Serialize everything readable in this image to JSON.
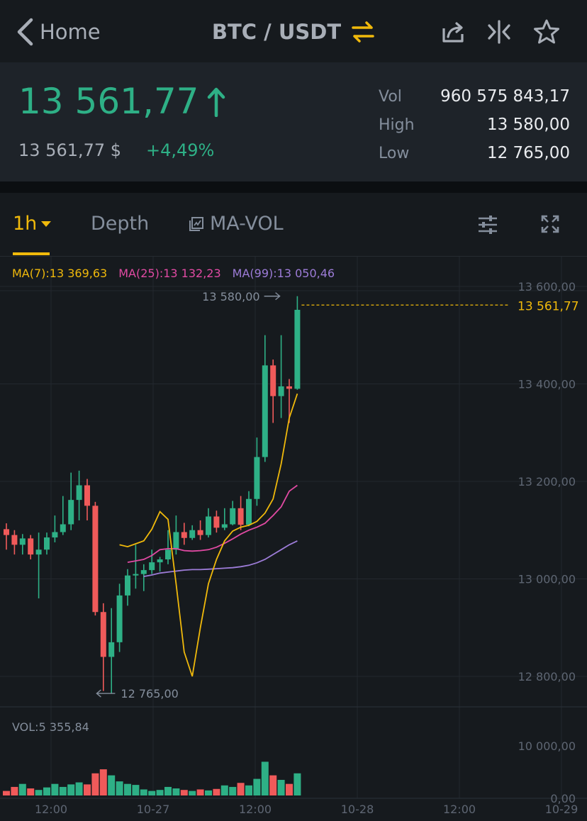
{
  "nav": {
    "back_label": "Home",
    "pair": "BTC / USDT",
    "icons": [
      "chevron-left-icon",
      "swap-icon",
      "share-icon",
      "compare-icon",
      "star-icon"
    ],
    "accent": "#f0b90b"
  },
  "ticker": {
    "last_price": "13 561,77",
    "fiat_price": "13 561,77 $",
    "change": "+4,49%",
    "up_color": "#2eb086",
    "stats": [
      {
        "label": "Vol",
        "value": "960 575 843,17"
      },
      {
        "label": "High",
        "value": "13 580,00"
      },
      {
        "label": "Low",
        "value": "12 765,00"
      }
    ]
  },
  "tabs": {
    "interval": "1h",
    "depth": "Depth",
    "indicator": "MA-VOL",
    "icons": [
      "chart-box-icon",
      "settings-sliders-icon",
      "fullscreen-icon"
    ]
  },
  "chart_data": {
    "type": "candlestick",
    "ma_legend": [
      {
        "label": "MA(7):13 369,63",
        "color": "#f0b90b"
      },
      {
        "label": "MA(25):13 132,23",
        "color": "#e14aa3"
      },
      {
        "label": "MA(99):13 050,46",
        "color": "#9d7cd8"
      }
    ],
    "price_ticks": [
      13600,
      13400,
      13200,
      13000,
      12800
    ],
    "price_tick_labels": [
      "13 600,00",
      "13 400,00",
      "13 200,00",
      "13 000,00",
      "12 800,00"
    ],
    "ylim": [
      12690,
      13620
    ],
    "current_price": 13561.77,
    "current_price_label": "13 561,77",
    "high_label": "13 580,00",
    "low_label": "12 765,00",
    "high_value": 13580,
    "low_value": 12765,
    "high_index": 34,
    "low_index": 11,
    "x_tick_labels": [
      "12:00",
      "10-27",
      "12:00",
      "10-28",
      "12:00",
      "10-29"
    ],
    "candles": [
      [
        13102,
        13090,
        13114,
        13060
      ],
      [
        13090,
        13070,
        13100,
        13050
      ],
      [
        13070,
        13083,
        13092,
        13050
      ],
      [
        13083,
        13050,
        13090,
        13040
      ],
      [
        13050,
        13060,
        13095,
        12960
      ],
      [
        13060,
        13085,
        13095,
        13050
      ],
      [
        13085,
        13096,
        13130,
        13075
      ],
      [
        13096,
        13112,
        13170,
        13090
      ],
      [
        13112,
        13162,
        13218,
        13100
      ],
      [
        13162,
        13192,
        13222,
        13120
      ],
      [
        13192,
        13150,
        13205,
        13120
      ],
      [
        13150,
        12932,
        13158,
        12925
      ],
      [
        12932,
        12840,
        12950,
        12770
      ],
      [
        12840,
        12870,
        12940,
        12765
      ],
      [
        12870,
        12966,
        12990,
        12850
      ],
      [
        12966,
        13007,
        13020,
        12945
      ],
      [
        13007,
        13010,
        13070,
        12980
      ],
      [
        13010,
        13018,
        13030,
        12975
      ],
      [
        13018,
        13034,
        13060,
        13010
      ],
      [
        13034,
        13040,
        13045,
        13015
      ],
      [
        13040,
        13060,
        13100,
        13030
      ],
      [
        13060,
        13096,
        13130,
        13050
      ],
      [
        13096,
        13084,
        13115,
        13070
      ],
      [
        13084,
        13100,
        13110,
        13080
      ],
      [
        13100,
        13090,
        13120,
        13080
      ],
      [
        13090,
        13128,
        13145,
        13085
      ],
      [
        13128,
        13105,
        13140,
        13095
      ],
      [
        13105,
        13112,
        13145,
        13100
      ],
      [
        13112,
        13145,
        13160,
        13110
      ],
      [
        13145,
        13111,
        13170,
        13100
      ],
      [
        13111,
        13164,
        13180,
        13108
      ],
      [
        13164,
        13250,
        13290,
        13150
      ],
      [
        13250,
        13438,
        13500,
        13240
      ],
      [
        13438,
        13375,
        13450,
        13320
      ],
      [
        13375,
        13395,
        13500,
        13330
      ],
      [
        13395,
        13390,
        13410,
        13320
      ],
      [
        13390,
        13552,
        13580,
        13388
      ]
    ],
    "ma7": [
      13070,
      13066,
      13072,
      13078,
      13102,
      13138,
      13122,
      12990,
      12850,
      12800,
      12900,
      12990,
      13040,
      13078,
      13098,
      13106,
      13110,
      13118,
      13135,
      13164,
      13236,
      13330,
      13380
    ],
    "ma25": [
      13034,
      13037,
      13040,
      13048,
      13060,
      13062,
      13062,
      13058,
      13057,
      13058,
      13060,
      13065,
      13073,
      13082,
      13092,
      13100,
      13106,
      13114,
      13130,
      13148,
      13180,
      13192
    ],
    "ma99": [
      13005,
      13008,
      13012,
      13014,
      13016,
      13018,
      13019,
      13019,
      13020,
      13021,
      13022,
      13023,
      13025,
      13028,
      13033,
      13040,
      13050,
      13060,
      13070,
      13078
    ],
    "volume_legend": "VOL:5 355,84",
    "volume_ticks": [
      "10 000,00",
      "0,00"
    ],
    "volume_ylim": [
      0,
      10000
    ],
    "volumes": [
      900,
      1700,
      2300,
      1400,
      1100,
      1600,
      2300,
      1700,
      2200,
      2600,
      2200,
      4400,
      5200,
      4000,
      2800,
      2300,
      2100,
      1200,
      900,
      1100,
      1700,
      1400,
      1100,
      900,
      1200,
      1000,
      1300,
      2000,
      1700,
      2500,
      2000,
      3300,
      6700,
      4000,
      3100,
      2300,
      4400
    ]
  }
}
